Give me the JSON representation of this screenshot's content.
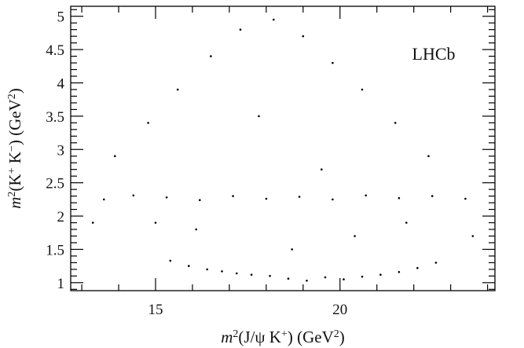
{
  "chart_data": {
    "type": "scatter",
    "title": "",
    "annotation": "LHCb",
    "xlabel_parts": [
      "m",
      "2",
      "(J/ψ K",
      "+",
      ") (GeV",
      "2",
      ")"
    ],
    "ylabel_parts": [
      "m",
      "2",
      "(K",
      "+",
      " K",
      "−",
      ") (GeV",
      "2",
      ")"
    ],
    "xlim": [
      12.7,
      24.2
    ],
    "ylim": [
      0.88,
      5.15
    ],
    "x_ticks": [
      15,
      20
    ],
    "x_tick_labels": [
      "15",
      "20"
    ],
    "y_ticks": [
      1,
      1.5,
      2,
      2.5,
      3,
      3.5,
      4,
      4.5,
      5
    ],
    "y_tick_labels": [
      "1",
      "1.5",
      "2",
      "2.5",
      "3",
      "3.5",
      "4",
      "4.5",
      "5"
    ],
    "grid": false,
    "marker_color": "#000000",
    "series": [
      {
        "values": [
          [
            19.1,
            1.03
          ],
          [
            18.6,
            1.06
          ],
          [
            19.6,
            1.08
          ],
          [
            18.1,
            1.1
          ],
          [
            20.1,
            1.05
          ],
          [
            17.6,
            1.12
          ],
          [
            20.6,
            1.09
          ],
          [
            17.2,
            1.14
          ],
          [
            21.1,
            1.12
          ],
          [
            16.8,
            1.17
          ],
          [
            21.6,
            1.16
          ],
          [
            16.4,
            1.2
          ],
          [
            22.1,
            1.22
          ],
          [
            15.9,
            1.25
          ],
          [
            22.6,
            1.3
          ],
          [
            15.4,
            1.33
          ],
          [
            13.6,
            2.25
          ],
          [
            14.4,
            2.31
          ],
          [
            15.3,
            2.28
          ],
          [
            16.2,
            2.24
          ],
          [
            17.1,
            2.3
          ],
          [
            18.0,
            2.26
          ],
          [
            18.9,
            2.29
          ],
          [
            19.8,
            2.25
          ],
          [
            20.7,
            2.31
          ],
          [
            21.6,
            2.27
          ],
          [
            22.5,
            2.3
          ],
          [
            23.4,
            2.26
          ],
          [
            13.9,
            2.9
          ],
          [
            14.8,
            3.4
          ],
          [
            15.6,
            3.9
          ],
          [
            16.5,
            4.4
          ],
          [
            17.3,
            4.8
          ],
          [
            18.2,
            4.95
          ],
          [
            19.0,
            4.7
          ],
          [
            19.8,
            4.3
          ],
          [
            20.6,
            3.9
          ],
          [
            21.5,
            3.4
          ],
          [
            22.4,
            2.9
          ],
          [
            17.8,
            3.5
          ],
          [
            16.1,
            1.8
          ],
          [
            20.4,
            1.7
          ],
          [
            18.7,
            1.5
          ],
          [
            15.0,
            1.9
          ],
          [
            21.8,
            1.9
          ],
          [
            13.3,
            1.9
          ],
          [
            23.6,
            1.7
          ],
          [
            19.5,
            2.7
          ]
        ]
      }
    ]
  }
}
